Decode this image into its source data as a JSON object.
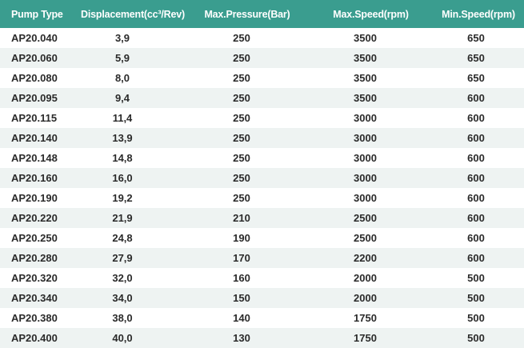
{
  "colors": {
    "header_bg": "#3a9d8f",
    "header_text": "#ffffff",
    "row_alt_bg": "#eef3f2",
    "row_bg": "#ffffff"
  },
  "table": {
    "headers": [
      "Pump Type",
      "Displacement(cc³/Rev)",
      "Max.Pressure(Bar)",
      "Max.Speed(rpm)",
      "Min.Speed(rpm)"
    ],
    "rows": [
      [
        "AP20.040",
        "3,9",
        "250",
        "3500",
        "650"
      ],
      [
        "AP20.060",
        "5,9",
        "250",
        "3500",
        "650"
      ],
      [
        "AP20.080",
        "8,0",
        "250",
        "3500",
        "650"
      ],
      [
        "AP20.095",
        "9,4",
        "250",
        "3500",
        "600"
      ],
      [
        "AP20.115",
        "11,4",
        "250",
        "3000",
        "600"
      ],
      [
        "AP20.140",
        "13,9",
        "250",
        "3000",
        "600"
      ],
      [
        "AP20.148",
        "14,8",
        "250",
        "3000",
        "600"
      ],
      [
        "AP20.160",
        "16,0",
        "250",
        "3000",
        "600"
      ],
      [
        "AP20.190",
        "19,2",
        "250",
        "3000",
        "600"
      ],
      [
        "AP20.220",
        "21,9",
        "210",
        "2500",
        "600"
      ],
      [
        "AP20.250",
        "24,8",
        "190",
        "2500",
        "600"
      ],
      [
        "AP20.280",
        "27,9",
        "170",
        "2200",
        "600"
      ],
      [
        "AP20.320",
        "32,0",
        "160",
        "2000",
        "500"
      ],
      [
        "AP20.340",
        "34,0",
        "150",
        "2000",
        "500"
      ],
      [
        "AP20.380",
        "38,0",
        "140",
        "1750",
        "500"
      ],
      [
        "AP20.400",
        "40,0",
        "130",
        "1750",
        "500"
      ]
    ]
  }
}
